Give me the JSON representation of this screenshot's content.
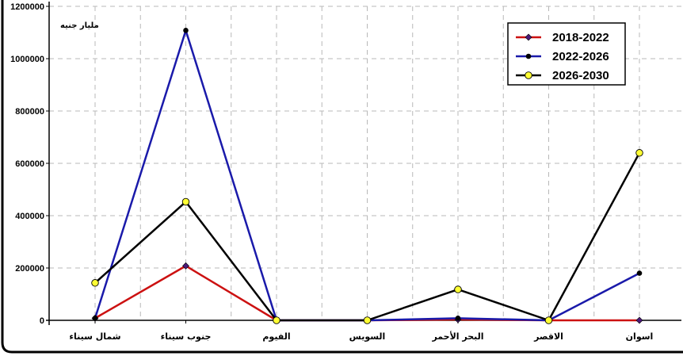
{
  "chart_data": {
    "type": "line",
    "title": "",
    "unit_label": "مليار جنيه",
    "categories": [
      "شمال سيناء",
      "جنوب سيناء",
      "الفيوم",
      "السويس",
      "البحر الأحمر",
      "الاقصر",
      "اسوان"
    ],
    "y_ticks": [
      "0",
      "200000",
      "400000",
      "600000",
      "800000",
      "1000000",
      "1200000"
    ],
    "ylim": [
      0,
      1200000
    ],
    "grid": true,
    "legend_position": "top-right",
    "series": [
      {
        "name": "2018-2022",
        "color": "#cc1111",
        "marker_color": "#4b1a7a",
        "values": [
          8000,
          208000,
          0,
          0,
          3000,
          0,
          0
        ]
      },
      {
        "name": "2022-2026",
        "color": "#1a1aaa",
        "marker_color": "#000000",
        "values": [
          8000,
          1108000,
          0,
          0,
          8000,
          0,
          180000
        ]
      },
      {
        "name": "2026-2030",
        "color": "#000000",
        "marker_color": "#ffff33",
        "values": [
          143000,
          453000,
          0,
          0,
          118000,
          0,
          640000
        ]
      }
    ]
  }
}
